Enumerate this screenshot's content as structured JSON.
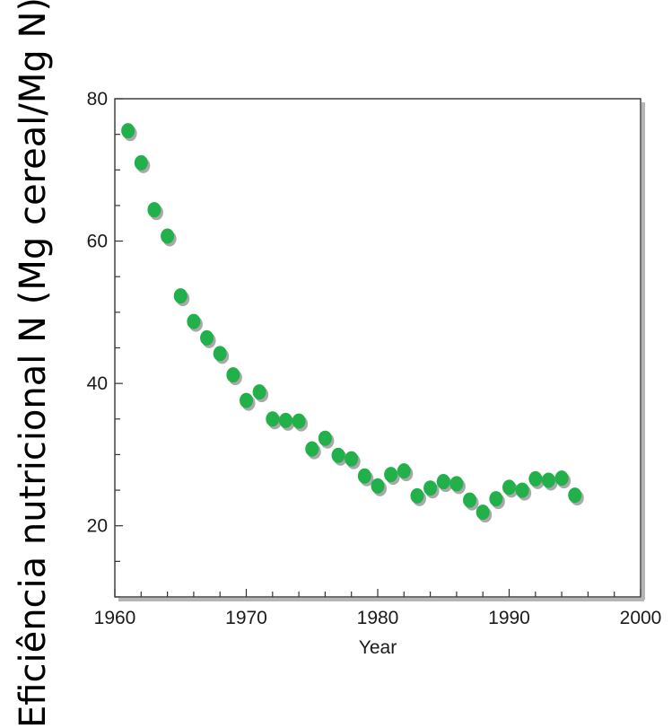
{
  "chart_data": {
    "type": "scatter",
    "title": "",
    "xlabel": "Year",
    "ylabel": "Eficiência nutricional N (Mg cereal/Mg N)",
    "xlim": [
      1960,
      2000
    ],
    "ylim": [
      10,
      80
    ],
    "x_ticks": [
      "1960",
      "1970",
      "1980",
      "1990",
      "2000"
    ],
    "y_ticks": [
      "20",
      "40",
      "60",
      "80"
    ],
    "x_minor_step": 2,
    "y_minor_step": 5,
    "grid": false,
    "marker_color": "#22b04a",
    "shadow_color": "#8c8c8c",
    "points": [
      {
        "x": 1961,
        "y": 75.5
      },
      {
        "x": 1962,
        "y": 71.0
      },
      {
        "x": 1963,
        "y": 64.4
      },
      {
        "x": 1964,
        "y": 60.7
      },
      {
        "x": 1965,
        "y": 52.3
      },
      {
        "x": 1966,
        "y": 48.7
      },
      {
        "x": 1967,
        "y": 46.4
      },
      {
        "x": 1968,
        "y": 44.2
      },
      {
        "x": 1969,
        "y": 41.2
      },
      {
        "x": 1970,
        "y": 37.6
      },
      {
        "x": 1971,
        "y": 38.8
      },
      {
        "x": 1972,
        "y": 35.0
      },
      {
        "x": 1973,
        "y": 34.8
      },
      {
        "x": 1974,
        "y": 34.7
      },
      {
        "x": 1975,
        "y": 30.8
      },
      {
        "x": 1976,
        "y": 32.3
      },
      {
        "x": 1977,
        "y": 29.9
      },
      {
        "x": 1978,
        "y": 29.4
      },
      {
        "x": 1979,
        "y": 27.0
      },
      {
        "x": 1980,
        "y": 25.6
      },
      {
        "x": 1981,
        "y": 27.2
      },
      {
        "x": 1982,
        "y": 27.7
      },
      {
        "x": 1983,
        "y": 24.2
      },
      {
        "x": 1984,
        "y": 25.3
      },
      {
        "x": 1985,
        "y": 26.2
      },
      {
        "x": 1986,
        "y": 25.9
      },
      {
        "x": 1987,
        "y": 23.6
      },
      {
        "x": 1988,
        "y": 21.9
      },
      {
        "x": 1989,
        "y": 23.8
      },
      {
        "x": 1990,
        "y": 25.4
      },
      {
        "x": 1991,
        "y": 25.0
      },
      {
        "x": 1992,
        "y": 26.6
      },
      {
        "x": 1993,
        "y": 26.4
      },
      {
        "x": 1994,
        "y": 26.7
      },
      {
        "x": 1995,
        "y": 24.3
      }
    ]
  }
}
